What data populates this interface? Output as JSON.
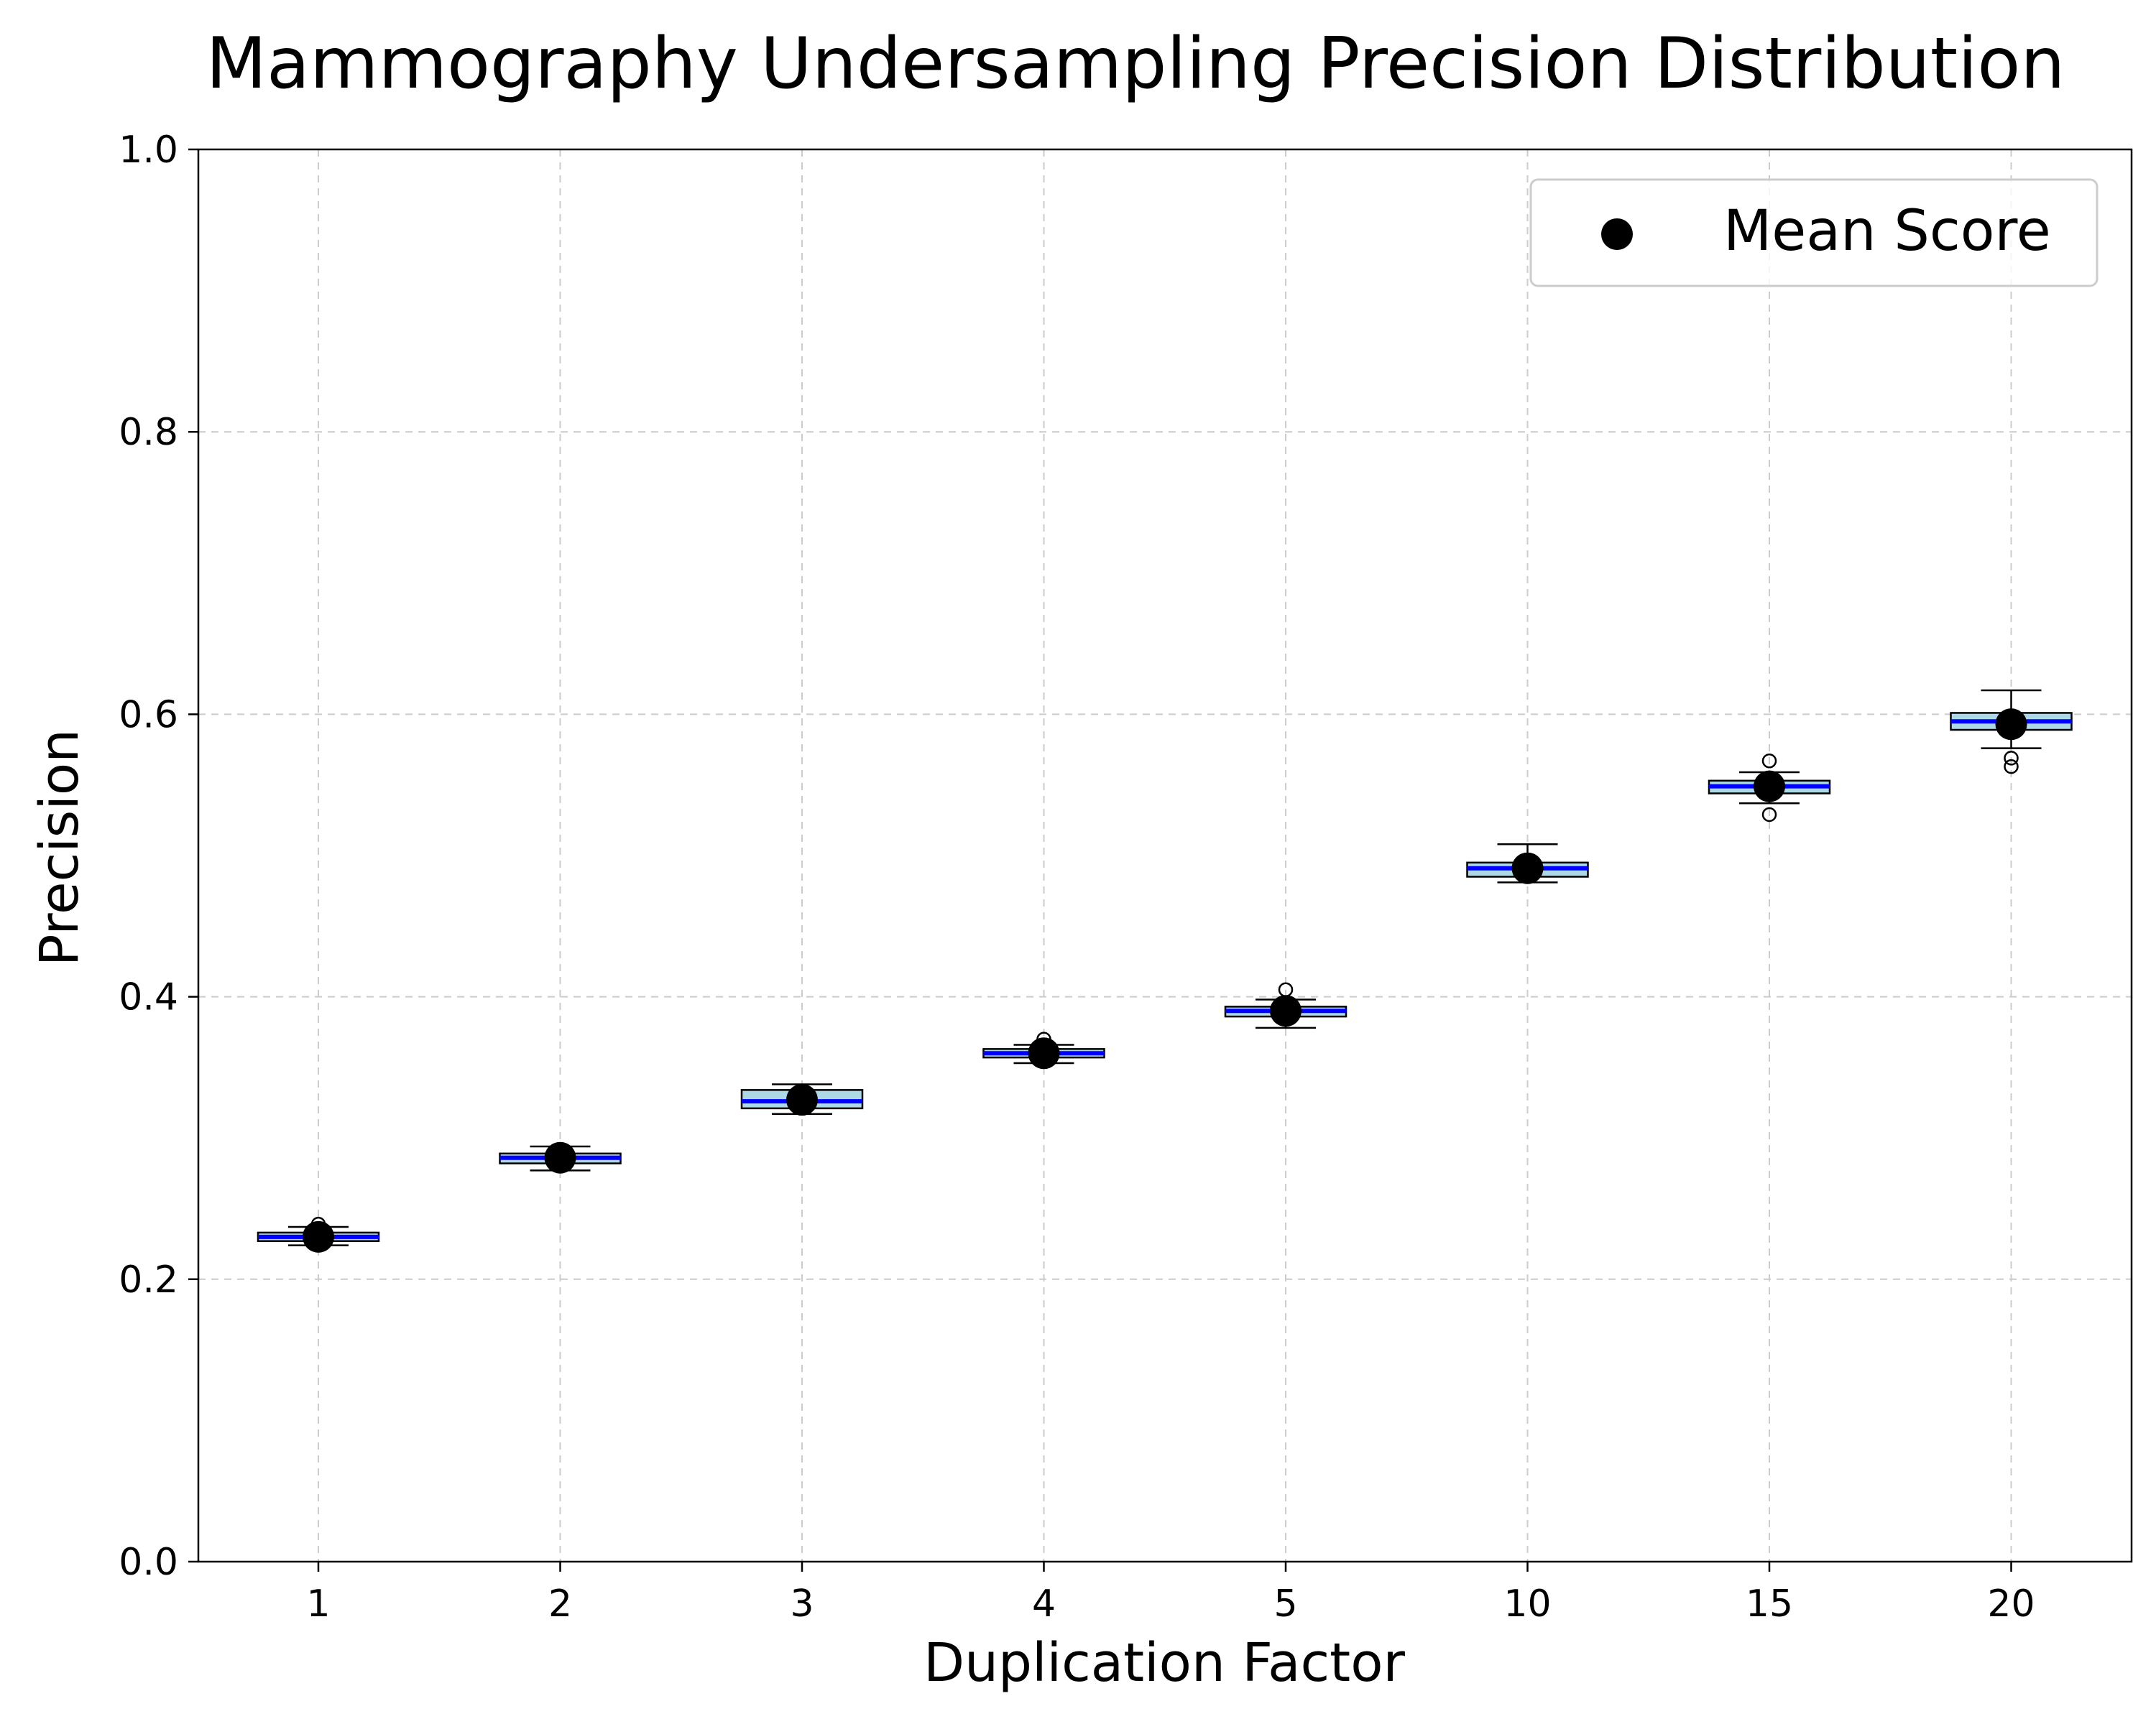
{
  "chart_data": {
    "type": "box",
    "title": "Mammography Undersampling Precision Distribution",
    "xlabel": "Duplication Factor",
    "ylabel": "Precision",
    "ylim": [
      0.0,
      1.0
    ],
    "yticks": [
      "0.0",
      "0.2",
      "0.4",
      "0.6",
      "0.8",
      "1.0"
    ],
    "grid": true,
    "legend": {
      "position": "top-right",
      "entries": [
        "Mean Score"
      ]
    },
    "colors": {
      "box_fill": "#add8e6",
      "median": "#0000ff",
      "whisker": "#000000",
      "mean": "#000000",
      "grid": "#cccccc"
    },
    "categories": [
      "1",
      "2",
      "3",
      "4",
      "5",
      "10",
      "15",
      "20"
    ],
    "boxes": [
      {
        "q1": 0.227,
        "median": 0.23,
        "q3": 0.233,
        "whislo": 0.224,
        "whishi": 0.237,
        "mean": 0.23,
        "fliers": [
          0.239
        ]
      },
      {
        "q1": 0.282,
        "median": 0.286,
        "q3": 0.289,
        "whislo": 0.277,
        "whishi": 0.294,
        "mean": 0.286,
        "fliers": []
      },
      {
        "q1": 0.321,
        "median": 0.326,
        "q3": 0.334,
        "whislo": 0.317,
        "whishi": 0.338,
        "mean": 0.327,
        "fliers": []
      },
      {
        "q1": 0.357,
        "median": 0.36,
        "q3": 0.363,
        "whislo": 0.353,
        "whishi": 0.366,
        "mean": 0.36,
        "fliers": [
          0.37
        ]
      },
      {
        "q1": 0.386,
        "median": 0.39,
        "q3": 0.393,
        "whislo": 0.378,
        "whishi": 0.398,
        "mean": 0.39,
        "fliers": [
          0.405
        ]
      },
      {
        "q1": 0.485,
        "median": 0.491,
        "q3": 0.495,
        "whislo": 0.481,
        "whishi": 0.508,
        "mean": 0.491,
        "fliers": []
      },
      {
        "q1": 0.544,
        "median": 0.549,
        "q3": 0.553,
        "whislo": 0.537,
        "whishi": 0.559,
        "mean": 0.549,
        "fliers": [
          0.567,
          0.529
        ]
      },
      {
        "q1": 0.589,
        "median": 0.595,
        "q3": 0.601,
        "whislo": 0.576,
        "whishi": 0.617,
        "mean": 0.593,
        "fliers": [
          0.569,
          0.563
        ]
      }
    ]
  }
}
